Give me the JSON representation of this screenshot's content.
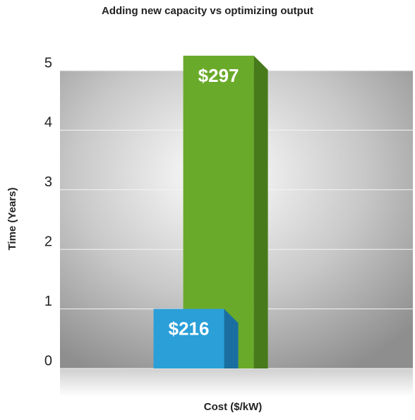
{
  "chart_data": {
    "type": "bar3d",
    "title": "Adding new capacity vs optimizing output",
    "y_label": "Time (Years)",
    "x_label": "Cost ($/kW)",
    "x": [
      216,
      297
    ],
    "x_labels": [
      "$216",
      "$297"
    ],
    "values": [
      1,
      5.25
    ],
    "colors": [
      "#2a9fd8",
      "#6aaa2a"
    ],
    "side_colors": [
      "#1a6fa0",
      "#467a1a"
    ],
    "xlim": [
      -136,
      828
    ],
    "ylim": [
      0,
      5
    ],
    "yticks": [
      0,
      1,
      2,
      3,
      4,
      5
    ],
    "grid": true
  }
}
